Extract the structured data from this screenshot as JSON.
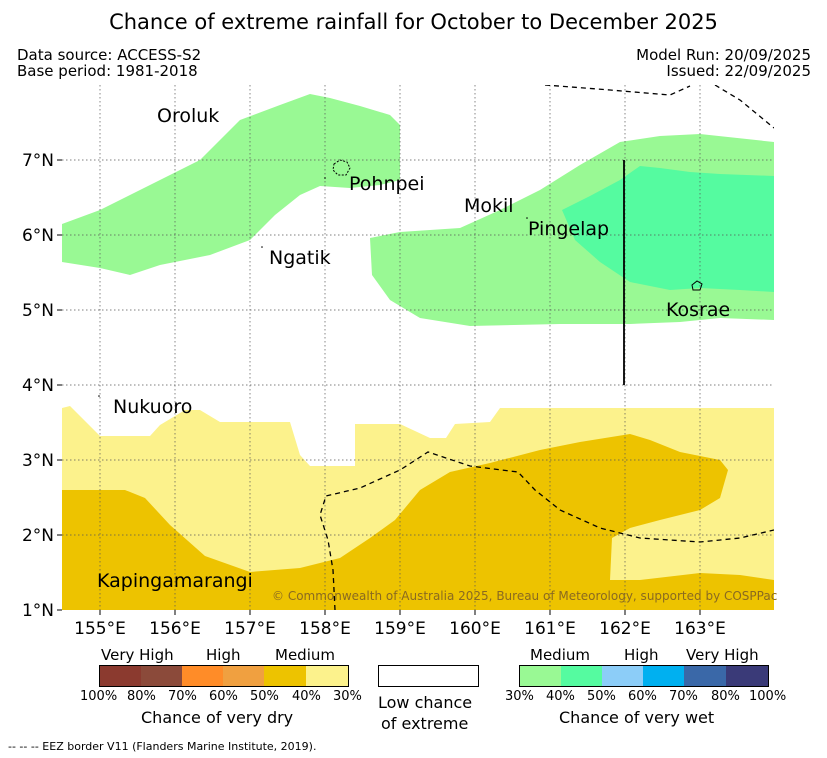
{
  "title": "Chance of extreme rainfall for October to December 2025",
  "meta": {
    "data_source": "Data source: ACCESS-S2",
    "base_period": "Base period: 1981-2018",
    "model_run": "Model Run: 20/09/2025",
    "issued": "Issued: 22/09/2025"
  },
  "axes": {
    "lon_labels": [
      "155°E",
      "156°E",
      "157°E",
      "158°E",
      "159°E",
      "160°E",
      "161°E",
      "162°E",
      "163°E"
    ],
    "lat_labels": [
      "1°N",
      "2°N",
      "3°N",
      "4°N",
      "5°N",
      "6°N",
      "7°N"
    ]
  },
  "places": {
    "oroluk": "Oroluk",
    "pohnpei": "Pohnpei",
    "ngatik": "Ngatik",
    "mokil": "Mokil",
    "pingelap": "Pingelap",
    "kosrae": "Kosrae",
    "nukuoro": "Nukuoro",
    "kapinga": "Kapingamarangi"
  },
  "copyright": "© Commonwealth of Australia 2025, Bureau of Meteorology, supported by COSPPac",
  "legend": {
    "dry": {
      "very_high": "Very High",
      "high": "High",
      "medium": "Medium",
      "pcts": [
        "100%",
        "80%",
        "70%",
        "60%",
        "50%",
        "40%",
        "30%"
      ],
      "title": "Chance of very dry",
      "colors": [
        "#8b3a2f",
        "#8b4a3a",
        "#ff8c28",
        "#f0a040",
        "#edc300",
        "#fcf28c"
      ]
    },
    "low": {
      "line1": "Low chance",
      "line2": "of extreme"
    },
    "wet": {
      "medium": "Medium",
      "high": "High",
      "very_high": "Very High",
      "pcts": [
        "30%",
        "40%",
        "50%",
        "60%",
        "70%",
        "80%",
        "100%"
      ],
      "title": "Chance of very wet",
      "colors": [
        "#99f994",
        "#55fba0",
        "#8ccdf8",
        "#00b0f0",
        "#3a68a8",
        "#3a3a78"
      ]
    }
  },
  "footer": "-- -- -- EEZ border V11 (Flanders Marine Institute, 2019)."
}
